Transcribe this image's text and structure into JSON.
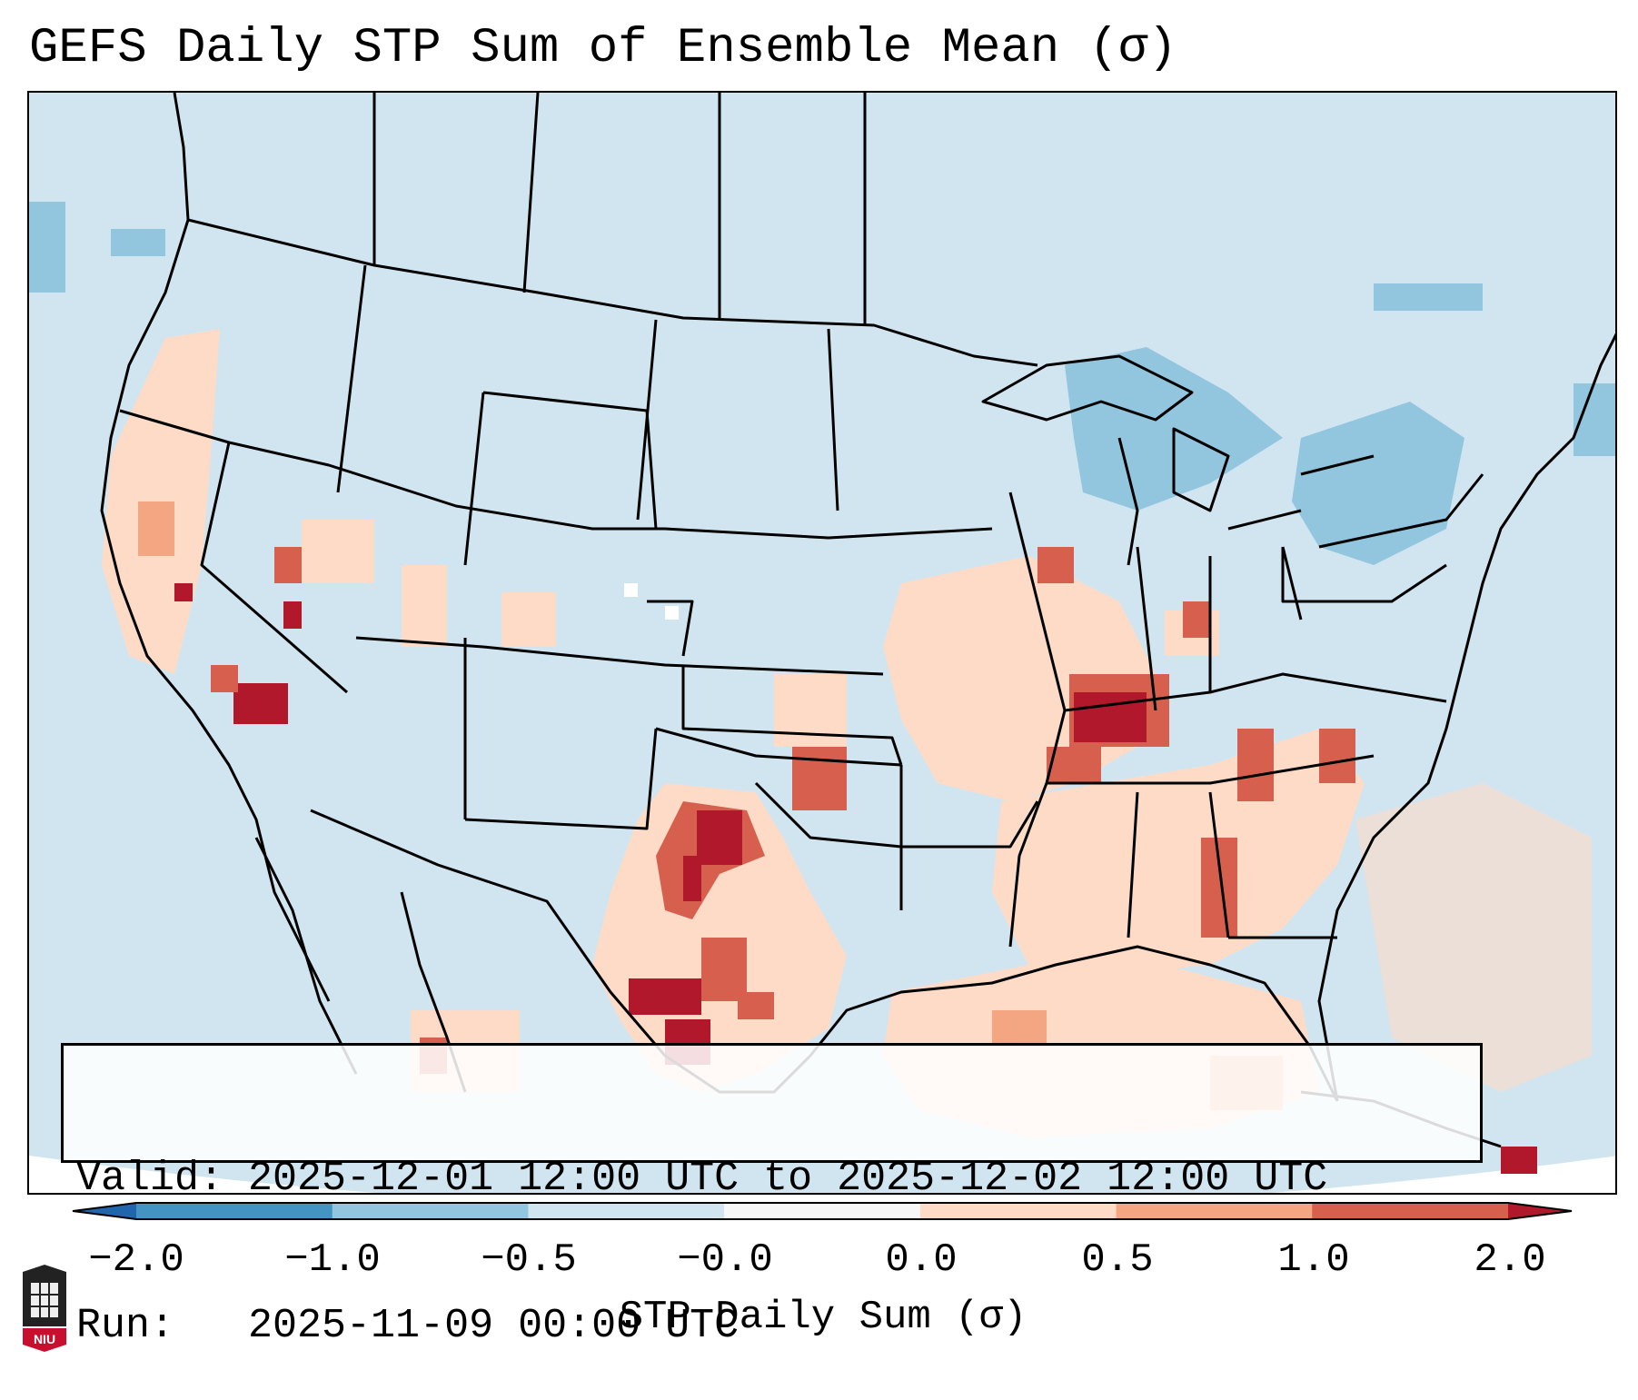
{
  "title": "GEFS Daily STP Sum of Ensemble Mean (σ)",
  "info": {
    "valid_line": "Valid: 2025-12-01 12:00 UTC to 2025-12-02 12:00 UTC",
    "run_line": "Run:   2025-11-09 00:00 UTC"
  },
  "colorbar": {
    "label": "STP Daily Sum (σ)",
    "ticks": [
      "−2.0",
      "−1.0",
      "−0.5",
      "−0.0",
      "0.0",
      "0.5",
      "1.0",
      "2.0"
    ],
    "segment_colors": [
      "#2166ac",
      "#4393c3",
      "#92c5de",
      "#d1e5f0",
      "#f7f7f7",
      "#fddbc7",
      "#f4a582",
      "#d6604d",
      "#b2182b"
    ]
  },
  "legend_colors": {
    "neg_small": "#d1e5f0",
    "neg_mid": "#92c5de",
    "pos_small": "#fddbc7",
    "pos_mid": "#f4a582",
    "pos_high": "#d6604d",
    "pos_max": "#b2182b"
  },
  "logo": {
    "name": "niu-logo",
    "text": "NIU"
  },
  "anomaly_regions": [
    {
      "name": "california-coast",
      "level": "pos_mid"
    },
    {
      "name": "southern-nevada",
      "level": "pos_max"
    },
    {
      "name": "texas-oklahoma",
      "level": "pos_max"
    },
    {
      "name": "ohio-valley",
      "level": "pos_max"
    },
    {
      "name": "southeast-us",
      "level": "pos_high"
    },
    {
      "name": "gulf-of-mexico",
      "level": "pos_small"
    },
    {
      "name": "great-lakes",
      "level": "neg_mid"
    },
    {
      "name": "new-england",
      "level": "neg_mid"
    }
  ]
}
